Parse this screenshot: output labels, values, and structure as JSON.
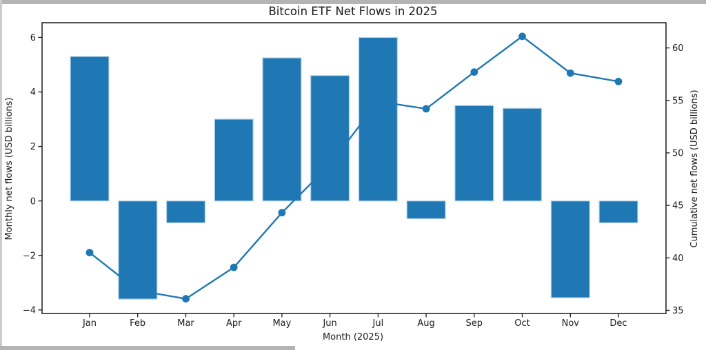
{
  "chart_data": {
    "type": "combo",
    "title": "Bitcoin ETF Net Flows in 2025",
    "xlabel": "Month (2025)",
    "ylabel_left": "Monthly net flows (USD billions)",
    "ylabel_right": "Cumulative net flows (USD billions)",
    "categories": [
      "Jan",
      "Feb",
      "Mar",
      "Apr",
      "May",
      "Jun",
      "Jul",
      "Aug",
      "Sep",
      "Oct",
      "Nov",
      "Dec"
    ],
    "series": [
      {
        "name": "Monthly net flows",
        "type": "bar",
        "axis": "left",
        "values": [
          5.3,
          -3.6,
          -0.8,
          3.0,
          5.25,
          4.6,
          6.0,
          -0.65,
          3.5,
          3.4,
          -3.55,
          -0.8
        ]
      },
      {
        "name": "Cumulative net flows",
        "type": "line",
        "axis": "right",
        "marker": "circle",
        "values": [
          40.5,
          36.9,
          36.1,
          39.1,
          44.3,
          48.9,
          54.9,
          54.2,
          57.7,
          61.1,
          57.6,
          56.8
        ]
      }
    ],
    "yticks_left": [
      {
        "value": -4,
        "label": "−4"
      },
      {
        "value": -2,
        "label": "−2"
      },
      {
        "value": 0,
        "label": "0"
      },
      {
        "value": 2,
        "label": "2"
      },
      {
        "value": 4,
        "label": "4"
      },
      {
        "value": 6,
        "label": "6"
      }
    ],
    "yticks_right": [
      {
        "value": 35,
        "label": "35"
      },
      {
        "value": 40,
        "label": "40"
      },
      {
        "value": 45,
        "label": "45"
      },
      {
        "value": 50,
        "label": "50"
      },
      {
        "value": 55,
        "label": "55"
      },
      {
        "value": 60,
        "label": "60"
      }
    ],
    "ylim_left": [
      -4.13,
      6.54
    ],
    "ylim_right": [
      34.7,
      62.4
    ],
    "xlim": [
      -0.99,
      11.99
    ],
    "grid": false,
    "legend": "none",
    "colors": {
      "series": "#1f77b4",
      "bar_edge": "#aecde8",
      "axis": "#1a1a1a",
      "text": "#1a1a1a"
    }
  }
}
